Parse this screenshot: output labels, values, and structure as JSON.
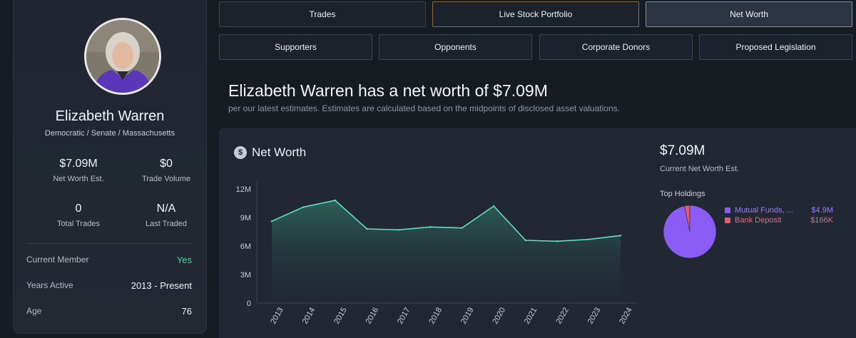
{
  "profile": {
    "name": "Elizabeth Warren",
    "party_line": "Democratic / Senate / Massachusetts",
    "stats": [
      {
        "value": "$7.09M",
        "label": "Net Worth Est."
      },
      {
        "value": "$0",
        "label": "Trade Volume"
      },
      {
        "value": "0",
        "label": "Total Trades"
      },
      {
        "value": "N/A",
        "label": "Last Traded"
      }
    ],
    "details": [
      {
        "key": "Current Member",
        "value": "Yes"
      },
      {
        "key": "Years Active",
        "value": "2013 - Present"
      },
      {
        "key": "Age",
        "value": "76"
      }
    ]
  },
  "tabs": {
    "row1": [
      "Trades",
      "Live Stock Portfolio",
      "Net Worth"
    ],
    "row2": [
      "Supporters",
      "Opponents",
      "Corporate Donors",
      "Proposed Legislation"
    ],
    "active": "Net Worth"
  },
  "headline": "Elizabeth Warren has a net worth of $7.09M",
  "subline": "per our latest estimates. Estimates are calculated based on the midpoints of disclosed asset valuations.",
  "net_worth_card": {
    "title": "Net Worth",
    "icon": "money-bag-icon",
    "current_value": "$7.09M",
    "current_label": "Current Net Worth Est.",
    "top_holdings_label": "Top Holdings",
    "holdings": [
      {
        "name": "Mutual Funds, ...",
        "amount": "$4.9M",
        "color": "#8b5cf6"
      },
      {
        "name": "Bank Deposit",
        "amount": "$166K",
        "color": "#e05a72"
      }
    ]
  },
  "chart_data": [
    {
      "type": "area",
      "x": [
        "2013",
        "2014",
        "2015",
        "2016",
        "2017",
        "2018",
        "2019",
        "2020",
        "2021",
        "2022",
        "2023",
        "2024"
      ],
      "series": [
        {
          "values": [
            8.6,
            10.1,
            10.8,
            7.8,
            7.7,
            8.0,
            7.9,
            10.2,
            6.6,
            6.5,
            6.7,
            7.1
          ]
        }
      ],
      "y_tick_labels": [
        "0",
        "3M",
        "6M",
        "9M",
        "12M"
      ],
      "ylim": [
        0,
        12
      ],
      "y_unit": "millions USD",
      "color": "#5fe0c0"
    },
    {
      "type": "pie",
      "categories": [
        "Mutual Funds, ...",
        "Bank Deposit"
      ],
      "values": [
        4.9,
        0.166
      ],
      "colors": [
        "#8b5cf6",
        "#e05a72"
      ]
    }
  ]
}
